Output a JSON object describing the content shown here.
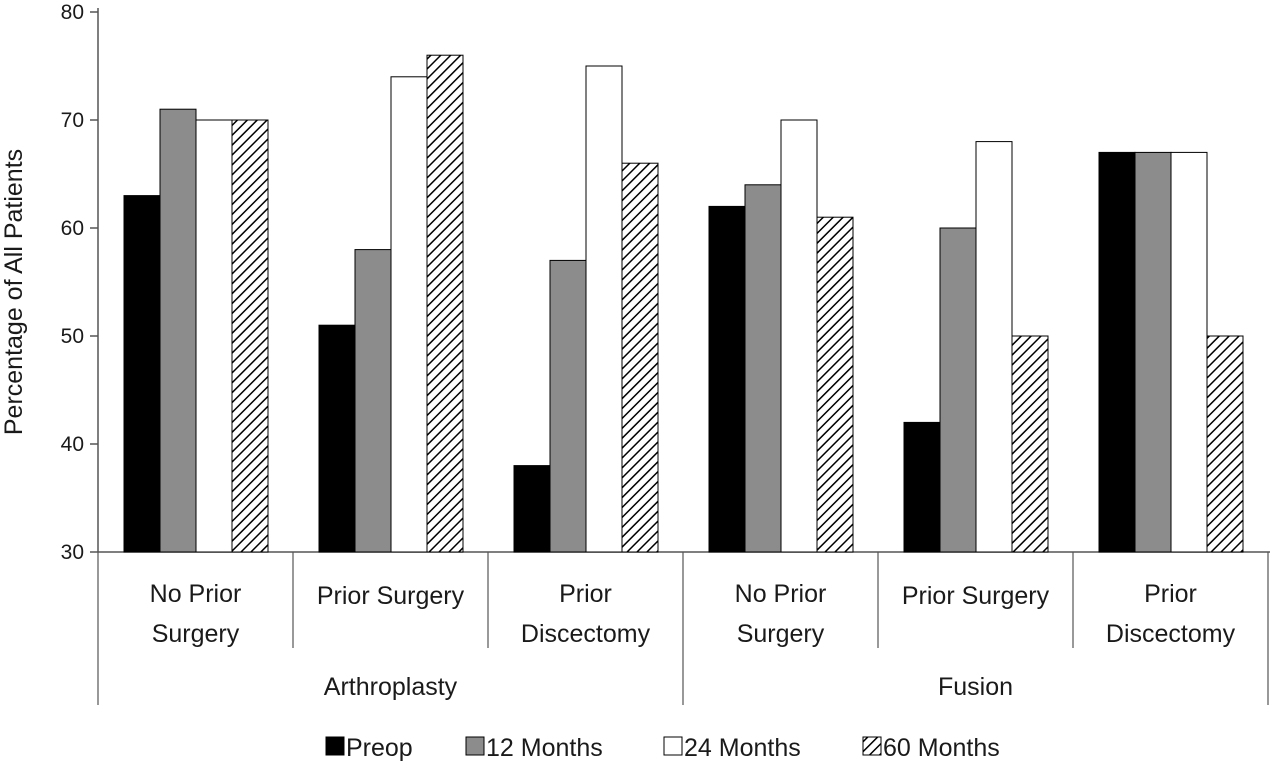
{
  "chart_data": {
    "type": "bar",
    "title": "",
    "ylabel": "Percentage of All Patients",
    "xlabel": "",
    "ylim": [
      30,
      80
    ],
    "yticks": [
      30,
      40,
      50,
      60,
      70,
      80
    ],
    "grid": false,
    "legend_position": "bottom",
    "groups": [
      {
        "label": "Arthroplasty",
        "categories": [
          0,
          1,
          2
        ]
      },
      {
        "label": "Fusion",
        "categories": [
          3,
          4,
          5
        ]
      }
    ],
    "categories": [
      [
        "No Prior",
        "Surgery"
      ],
      [
        "Prior Surgery"
      ],
      [
        "Prior",
        "Discectomy"
      ],
      [
        "No Prior",
        "Surgery"
      ],
      [
        "Prior Surgery"
      ],
      [
        "Prior",
        "Discectomy"
      ]
    ],
    "series": [
      {
        "name": "Preop",
        "fill": "solid-black",
        "values": [
          63,
          51,
          38,
          62,
          42,
          67
        ]
      },
      {
        "name": "12 Months",
        "fill": "solid-gray",
        "values": [
          71,
          58,
          57,
          64,
          60,
          67
        ]
      },
      {
        "name": "24 Months",
        "fill": "white",
        "values": [
          70,
          74,
          75,
          70,
          68,
          67
        ]
      },
      {
        "name": "60 Months",
        "fill": "diagonal-hatch",
        "values": [
          70,
          76,
          66,
          61,
          50,
          50
        ]
      }
    ],
    "colors": {
      "black": "#000000",
      "gray": "#8c8c8c",
      "white": "#ffffff",
      "hatch": "#000000",
      "axis": "#555555"
    }
  }
}
